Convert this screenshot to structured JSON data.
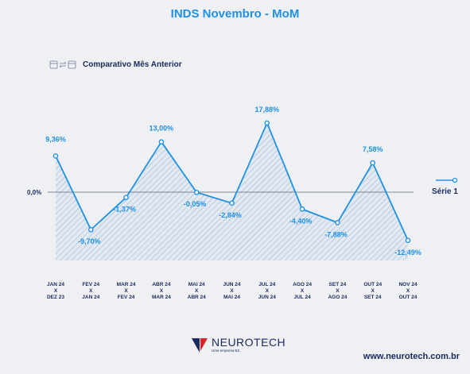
{
  "title": "INDS Novembro - MoM",
  "subtitle": "Comparativo Mês Anterior",
  "brand": {
    "name": "NEUROTECH",
    "tagline": "Uma empresa B3"
  },
  "website": "www.neurotech.com.br",
  "chart_data": {
    "type": "line",
    "categories": [
      [
        "JAN 24",
        "X",
        "DEZ 23"
      ],
      [
        "FEV 24",
        "X",
        "JAN 24"
      ],
      [
        "MAR 24",
        "X",
        "FEV 24"
      ],
      [
        "ABR 24",
        "X",
        "MAR 24"
      ],
      [
        "MAI 24",
        "X",
        "ABR 24"
      ],
      [
        "JUN 24",
        "X",
        "MAI 24"
      ],
      [
        "JUL 24",
        "X",
        "JUN 24"
      ],
      [
        "AGO 24",
        "X",
        "JUL 24"
      ],
      [
        "SET 24",
        "X",
        "AGO 24"
      ],
      [
        "OUT 24",
        "X",
        "SET 24"
      ],
      [
        "NOV 24",
        "X",
        "OUT 24"
      ]
    ],
    "series": [
      {
        "name": "Série 1",
        "values": [
          9.36,
          -9.7,
          -1.37,
          13.0,
          -0.05,
          -2.84,
          17.88,
          -4.4,
          -7.88,
          7.58,
          -12.49
        ],
        "labels": [
          "9,36%",
          "-9,70%",
          "-1,37%",
          "13,00%",
          "-0,05%",
          "-2,84%",
          "17,88%",
          "-4,40%",
          "-7,88%",
          "7,58%",
          "-12,49%"
        ]
      }
    ],
    "baseline_label": "0,0%",
    "legend_position": "right",
    "fill": "hatched-area",
    "line_color": "#1e90e6",
    "grid": false
  }
}
